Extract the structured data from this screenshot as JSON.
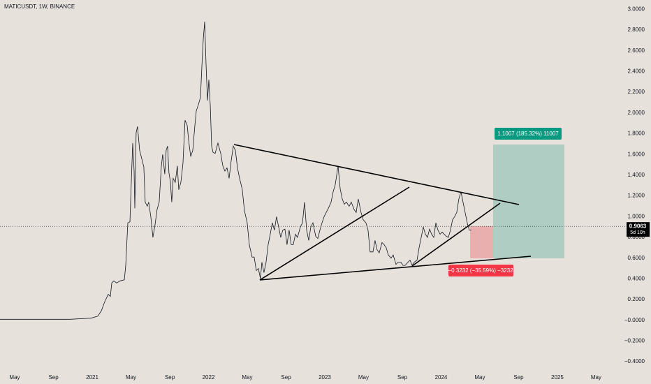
{
  "chart_data": {
    "type": "line",
    "title": "MATICUSDT, 1W, BINANCE",
    "color": "#131722",
    "grid": false,
    "xlim": [
      2020.207,
      2025.583
    ],
    "xticks": [
      {
        "value": 2020.333,
        "label": "May"
      },
      {
        "value": 2020.667,
        "label": "Sep"
      },
      {
        "value": 2021,
        "label": "2021"
      },
      {
        "value": 2021.333,
        "label": "May"
      },
      {
        "value": 2021.667,
        "label": "Sep"
      },
      {
        "value": 2022,
        "label": "2022"
      },
      {
        "value": 2022.333,
        "label": "May"
      },
      {
        "value": 2022.667,
        "label": "Sep"
      },
      {
        "value": 2023,
        "label": "2023"
      },
      {
        "value": 2023.333,
        "label": "May"
      },
      {
        "value": 2023.667,
        "label": "Sep"
      },
      {
        "value": 2024,
        "label": "2024"
      },
      {
        "value": 2024.333,
        "label": "May"
      },
      {
        "value": 2024.667,
        "label": "Sep"
      },
      {
        "value": 2025,
        "label": "2025"
      },
      {
        "value": 2025.333,
        "label": "May"
      }
    ],
    "ylim": [
      -0.48,
      3.09
    ],
    "yticks": [
      {
        "value": 3.0,
        "label": "3.0000"
      },
      {
        "value": 2.8,
        "label": "2.8000"
      },
      {
        "value": 2.6,
        "label": "2.6000"
      },
      {
        "value": 2.4,
        "label": "2.4000"
      },
      {
        "value": 2.2,
        "label": "2.2000"
      },
      {
        "value": 2.0,
        "label": "2.0000"
      },
      {
        "value": 1.8,
        "label": "1.8000"
      },
      {
        "value": 1.6,
        "label": "1.6000"
      },
      {
        "value": 1.4,
        "label": "1.4000"
      },
      {
        "value": 1.2,
        "label": "1.2000"
      },
      {
        "value": 1.0,
        "label": "1.0000"
      },
      {
        "value": 0.8,
        "label": "0.8000"
      },
      {
        "value": 0.6,
        "label": "0.6000"
      },
      {
        "value": 0.4,
        "label": "0.4000"
      },
      {
        "value": 0.2,
        "label": "0.2000"
      },
      {
        "value": 0,
        "label": "−0.0000"
      },
      {
        "value": -0.2,
        "label": "−0.2000"
      },
      {
        "value": -0.4,
        "label": "−0.4000"
      }
    ],
    "last_price": 0.9063,
    "countdown": "5d 10h",
    "target_label": "1.1007 (185.32%) 11007",
    "stop_label": "−0.3232 (−35.59%) −3232",
    "x": [
      2020.207,
      2020.567,
      2020.808,
      2020.988,
      2021.048,
      2021.078,
      2021.108,
      2021.138,
      2021.156,
      2021.168,
      2021.186,
      2021.21,
      2021.24,
      2021.276,
      2021.288,
      2021.306,
      2021.324,
      2021.336,
      2021.348,
      2021.36,
      2021.366,
      2021.378,
      2021.39,
      2021.408,
      2021.426,
      2021.444,
      2021.456,
      2021.474,
      2021.486,
      2021.504,
      2021.522,
      2021.54,
      2021.558,
      2021.576,
      2021.594,
      2021.606,
      2021.624,
      2021.636,
      2021.648,
      2021.66,
      2021.672,
      2021.684,
      2021.696,
      2021.714,
      2021.732,
      2021.744,
      2021.762,
      2021.78,
      2021.798,
      2021.817,
      2021.829,
      2021.847,
      2021.865,
      2021.883,
      2021.895,
      2021.913,
      2021.931,
      2021.943,
      2021.955,
      2021.967,
      2021.979,
      2021.991,
      2022.003,
      2022.015,
      2022.027,
      2022.039,
      2022.057,
      2022.081,
      2022.105,
      2022.123,
      2022.141,
      2022.159,
      2022.177,
      2022.195,
      2022.213,
      2022.231,
      2022.249,
      2022.267,
      2022.291,
      2022.309,
      2022.333,
      2022.351,
      2022.375,
      2022.393,
      2022.411,
      2022.429,
      2022.447,
      2022.459,
      2022.477,
      2022.495,
      2022.513,
      2022.531,
      2022.549,
      2022.567,
      2022.585,
      2022.603,
      2022.621,
      2022.639,
      2022.657,
      2022.675,
      2022.693,
      2022.711,
      2022.729,
      2022.747,
      2022.765,
      2022.79,
      2022.808,
      2022.826,
      2022.844,
      2022.862,
      2022.88,
      2022.898,
      2022.922,
      2022.94,
      2022.958,
      2022.976,
      2022.994,
      2023.012,
      2023.03,
      2023.054,
      2023.072,
      2023.09,
      2023.114,
      2023.132,
      2023.15,
      2023.168,
      2023.186,
      2023.21,
      2023.228,
      2023.252,
      2023.27,
      2023.288,
      2023.312,
      2023.33,
      2023.354,
      2023.372,
      2023.39,
      2023.414,
      2023.432,
      2023.45,
      2023.468,
      2023.492,
      2023.51,
      2023.528,
      2023.546,
      2023.57,
      2023.588,
      2023.612,
      2023.63,
      2023.654,
      2023.672,
      2023.69,
      2023.715,
      2023.733,
      2023.751,
      2023.769,
      2023.793,
      2023.811,
      2023.829,
      2023.847,
      2023.865,
      2023.883,
      2023.901,
      2023.919,
      2023.937,
      2023.955,
      2023.973,
      2023.991,
      2024.009,
      2024.027,
      2024.045,
      2024.063,
      2024.081,
      2024.099,
      2024.117,
      2024.135,
      2024.153,
      2024.171,
      2024.189,
      2024.207,
      2024.225,
      2024.243,
      2024.261
    ],
    "values": [
      0.01,
      0.01,
      0.01,
      0.02,
      0.04,
      0.09,
      0.18,
      0.25,
      0.23,
      0.36,
      0.38,
      0.36,
      0.38,
      0.39,
      0.53,
      0.94,
      0.95,
      1.34,
      1.71,
      1.44,
      1.08,
      1.81,
      1.87,
      1.64,
      1.56,
      1.48,
      1.14,
      1.1,
      1.14,
      1.0,
      0.8,
      0.92,
      1.07,
      1.14,
      1.48,
      1.6,
      1.41,
      1.64,
      1.68,
      1.42,
      1.34,
      1.14,
      1.37,
      1.33,
      1.49,
      1.26,
      1.33,
      1.51,
      1.93,
      1.88,
      1.74,
      1.58,
      1.64,
      1.88,
      2.02,
      2.08,
      2.15,
      2.45,
      2.71,
      2.88,
      2.47,
      2.12,
      2.32,
      2.08,
      1.68,
      1.62,
      1.61,
      1.71,
      1.61,
      1.49,
      1.44,
      1.47,
      1.37,
      1.54,
      1.68,
      1.64,
      1.47,
      1.37,
      1.26,
      1.06,
      0.94,
      0.73,
      0.61,
      0.61,
      0.48,
      0.5,
      0.4,
      0.56,
      0.46,
      0.56,
      0.73,
      0.83,
      0.94,
      0.87,
      1.0,
      0.9,
      0.8,
      0.87,
      0.88,
      0.73,
      0.87,
      0.73,
      0.73,
      0.83,
      0.8,
      0.9,
      0.94,
      1.14,
      0.87,
      0.77,
      0.9,
      0.94,
      0.81,
      0.79,
      0.87,
      0.94,
      1.0,
      1.04,
      1.08,
      1.14,
      1.24,
      1.31,
      1.49,
      1.27,
      1.17,
      1.12,
      1.14,
      1.1,
      1.14,
      1.07,
      1.04,
      1.17,
      1.04,
      0.97,
      0.94,
      0.87,
      0.66,
      0.66,
      0.77,
      0.68,
      0.65,
      0.75,
      0.73,
      0.7,
      0.63,
      0.6,
      0.63,
      0.54,
      0.56,
      0.56,
      0.53,
      0.53,
      0.56,
      0.58,
      0.53,
      0.56,
      0.58,
      0.7,
      0.8,
      0.9,
      0.83,
      0.8,
      0.88,
      0.83,
      0.8,
      0.94,
      0.87,
      0.83,
      0.85,
      0.83,
      0.81,
      0.8,
      0.87,
      0.97,
      1.0,
      1.04,
      1.17,
      1.24,
      1.14,
      1.04,
      0.94,
      0.87,
      0.87
    ]
  }
}
